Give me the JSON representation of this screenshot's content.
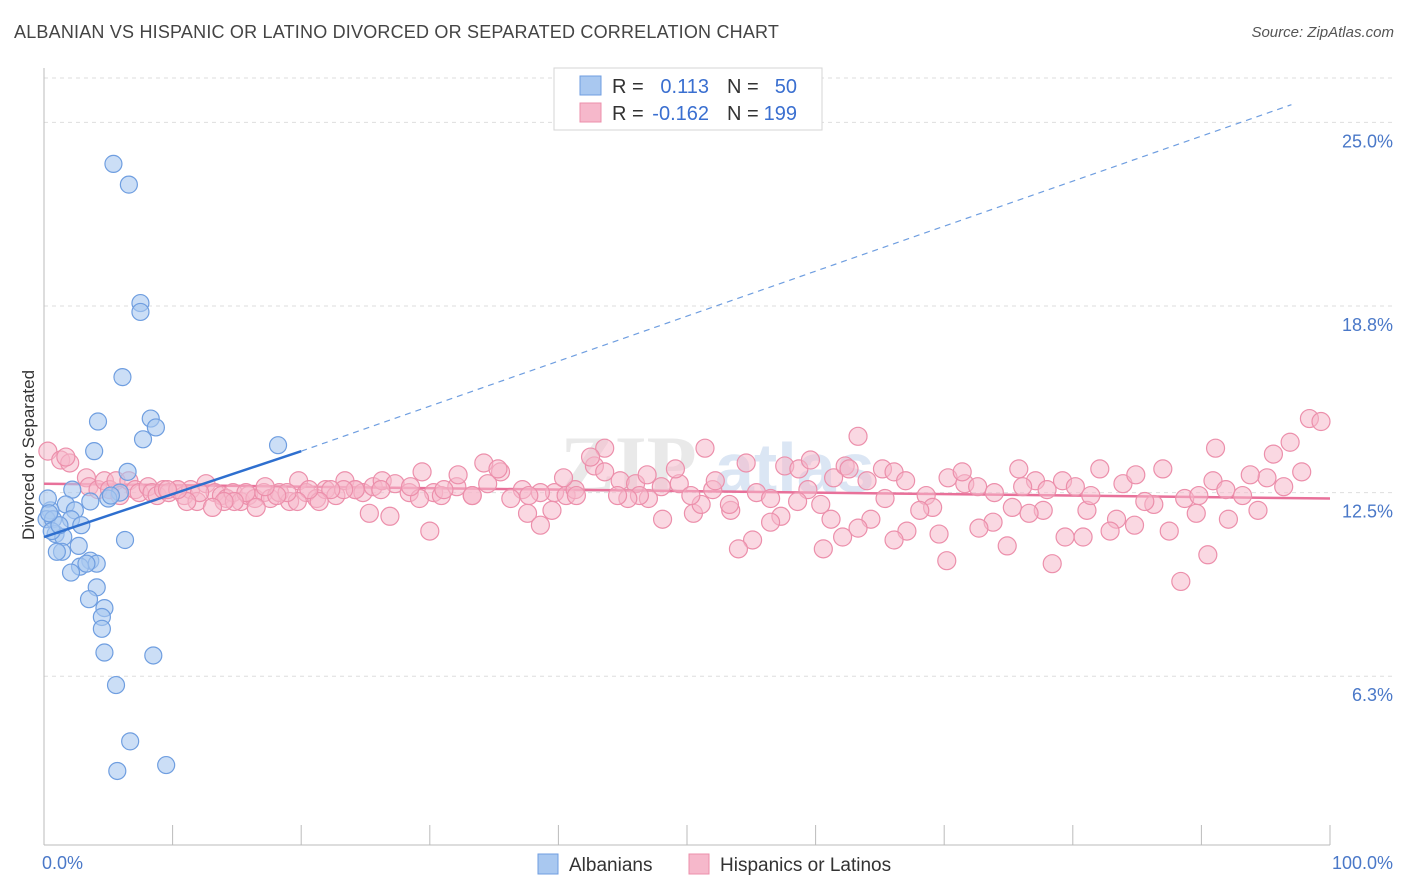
{
  "header": {
    "title": "ALBANIAN VS HISPANIC OR LATINO DIVORCED OR SEPARATED CORRELATION CHART",
    "source": "Source: ZipAtlas.com"
  },
  "watermark": "ZIPatlas",
  "legend": {
    "albanian": {
      "r_label": "R =",
      "r_value": "0.113",
      "n_label": "N =",
      "n_value": "50"
    },
    "hispanic": {
      "r_label": "R =",
      "r_value": "-0.162",
      "n_label": "N =",
      "n_value": "199"
    }
  },
  "bottom_legend": {
    "albanian": "Albanians",
    "hispanic": "Hispanics or Latinos"
  },
  "chart_data": {
    "type": "scatter",
    "title": "ALBANIAN VS HISPANIC OR LATINO DIVORCED OR SEPARATED CORRELATION CHART",
    "xlabel": "",
    "ylabel": "Divorced or Separated",
    "xlim": [
      0,
      100
    ],
    "ylim": [
      0.6,
      26.5
    ],
    "x_tick_labels": [
      "0.0%",
      "100.0%"
    ],
    "y_ticks": [
      6.3,
      12.5,
      18.8,
      25.0
    ],
    "y_tick_labels": [
      "6.3%",
      "12.5%",
      "18.8%",
      "25.0%"
    ],
    "grid": "horizontal dashed",
    "legend_placement": "top-center",
    "colors": {
      "albanian_fill": "#a9c8f0",
      "albanian_stroke": "#6f9ee0",
      "albanian_line": "#2e6fcf",
      "hispanic_fill": "#f6b8cb",
      "hispanic_stroke": "#ec8fab",
      "hispanic_line": "#e8719a"
    },
    "series": [
      {
        "name": "Albanians",
        "trend": {
          "x0": 0,
          "y0": 11.0,
          "x1": 20,
          "y1": 13.9,
          "dashed_to_x": 97,
          "dashed_to_y": 25.6
        },
        "points": [
          [
            5.4,
            23.6
          ],
          [
            6.6,
            22.9
          ],
          [
            7.5,
            18.9
          ],
          [
            7.5,
            18.6
          ],
          [
            6.1,
            16.4
          ],
          [
            8.3,
            15.0
          ],
          [
            8.7,
            14.7
          ],
          [
            4.2,
            14.9
          ],
          [
            7.7,
            14.3
          ],
          [
            3.9,
            13.9
          ],
          [
            18.2,
            14.1
          ],
          [
            6.5,
            13.2
          ],
          [
            2.2,
            12.6
          ],
          [
            1.7,
            12.1
          ],
          [
            3.6,
            12.2
          ],
          [
            5.9,
            12.5
          ],
          [
            5.0,
            12.3
          ],
          [
            0.5,
            11.9
          ],
          [
            2.4,
            11.9
          ],
          [
            0.2,
            11.6
          ],
          [
            0.7,
            11.6
          ],
          [
            2.1,
            11.6
          ],
          [
            2.9,
            11.4
          ],
          [
            0.9,
            11.1
          ],
          [
            1.5,
            11.0
          ],
          [
            0.6,
            11.2
          ],
          [
            6.3,
            10.9
          ],
          [
            2.7,
            10.7
          ],
          [
            1.4,
            10.5
          ],
          [
            1.0,
            10.5
          ],
          [
            3.6,
            10.2
          ],
          [
            2.8,
            10.0
          ],
          [
            4.1,
            10.1
          ],
          [
            3.3,
            10.1
          ],
          [
            2.1,
            9.8
          ],
          [
            4.1,
            9.3
          ],
          [
            3.5,
            8.9
          ],
          [
            4.7,
            8.6
          ],
          [
            4.5,
            8.3
          ],
          [
            4.5,
            7.9
          ],
          [
            4.7,
            7.1
          ],
          [
            8.5,
            7.0
          ],
          [
            5.6,
            6.0
          ],
          [
            6.7,
            4.1
          ],
          [
            5.7,
            3.1
          ],
          [
            9.5,
            3.3
          ],
          [
            0.3,
            12.3
          ],
          [
            1.2,
            11.4
          ],
          [
            0.4,
            11.8
          ],
          [
            5.2,
            12.4
          ]
        ]
      },
      {
        "name": "Hispanics or Latinos",
        "trend": {
          "x0": 0,
          "y0": 12.8,
          "x1": 100,
          "y1": 12.3
        },
        "points": [
          [
            0.3,
            13.9
          ],
          [
            1.3,
            13.6
          ],
          [
            2.0,
            13.5
          ],
          [
            1.7,
            13.7
          ],
          [
            3.3,
            13.0
          ],
          [
            3.5,
            12.7
          ],
          [
            4.2,
            12.6
          ],
          [
            4.7,
            12.9
          ],
          [
            5.1,
            12.6
          ],
          [
            5.6,
            12.9
          ],
          [
            5.9,
            12.4
          ],
          [
            6.6,
            12.9
          ],
          [
            7.1,
            12.6
          ],
          [
            7.4,
            12.5
          ],
          [
            8.1,
            12.7
          ],
          [
            8.4,
            12.5
          ],
          [
            8.8,
            12.4
          ],
          [
            9.3,
            12.6
          ],
          [
            9.7,
            12.5
          ],
          [
            10.4,
            12.6
          ],
          [
            10.9,
            12.4
          ],
          [
            11.4,
            12.6
          ],
          [
            11.9,
            12.2
          ],
          [
            12.6,
            12.8
          ],
          [
            13.3,
            12.5
          ],
          [
            13.8,
            12.4
          ],
          [
            14.2,
            12.3
          ],
          [
            14.7,
            12.5
          ],
          [
            15.3,
            12.2
          ],
          [
            15.9,
            12.4
          ],
          [
            16.4,
            12.3
          ],
          [
            17.1,
            12.5
          ],
          [
            17.6,
            12.3
          ],
          [
            18.3,
            12.5
          ],
          [
            19.1,
            12.2
          ],
          [
            19.8,
            12.9
          ],
          [
            20.4,
            12.5
          ],
          [
            21.2,
            12.3
          ],
          [
            21.9,
            12.6
          ],
          [
            22.7,
            12.4
          ],
          [
            23.4,
            12.9
          ],
          [
            24.2,
            12.6
          ],
          [
            24.8,
            12.5
          ],
          [
            25.6,
            12.7
          ],
          [
            26.3,
            12.9
          ],
          [
            27.3,
            12.8
          ],
          [
            28.4,
            12.5
          ],
          [
            29.4,
            13.2
          ],
          [
            30.3,
            12.5
          ],
          [
            30.9,
            12.4
          ],
          [
            32.1,
            12.7
          ],
          [
            33.3,
            12.4
          ],
          [
            34.2,
            13.5
          ],
          [
            35.5,
            13.2
          ],
          [
            37.2,
            12.6
          ],
          [
            37.6,
            11.8
          ],
          [
            38.6,
            11.4
          ],
          [
            39.7,
            12.5
          ],
          [
            40.6,
            12.4
          ],
          [
            41.3,
            12.6
          ],
          [
            42.8,
            13.4
          ],
          [
            43.6,
            13.2
          ],
          [
            44.8,
            12.9
          ],
          [
            46.0,
            12.8
          ],
          [
            46.9,
            13.1
          ],
          [
            48.0,
            12.7
          ],
          [
            49.4,
            12.8
          ],
          [
            50.5,
            11.8
          ],
          [
            51.1,
            12.1
          ],
          [
            52.0,
            12.6
          ],
          [
            53.4,
            11.9
          ],
          [
            54.6,
            13.5
          ],
          [
            55.4,
            12.5
          ],
          [
            56.5,
            12.3
          ],
          [
            57.6,
            13.4
          ],
          [
            58.7,
            13.3
          ],
          [
            59.6,
            13.6
          ],
          [
            60.4,
            12.1
          ],
          [
            61.4,
            13.0
          ],
          [
            62.3,
            13.4
          ],
          [
            63.3,
            14.4
          ],
          [
            64.0,
            12.9
          ],
          [
            65.2,
            13.3
          ],
          [
            66.1,
            13.2
          ],
          [
            67.0,
            12.9
          ],
          [
            68.6,
            12.4
          ],
          [
            69.1,
            12.0
          ],
          [
            70.3,
            13.0
          ],
          [
            71.6,
            12.8
          ],
          [
            72.6,
            12.7
          ],
          [
            73.9,
            12.5
          ],
          [
            75.3,
            12.0
          ],
          [
            75.8,
            13.3
          ],
          [
            77.1,
            12.9
          ],
          [
            78.0,
            12.6
          ],
          [
            79.2,
            12.9
          ],
          [
            80.2,
            12.7
          ],
          [
            81.1,
            11.9
          ],
          [
            82.1,
            13.3
          ],
          [
            83.9,
            12.8
          ],
          [
            84.9,
            13.1
          ],
          [
            86.3,
            12.1
          ],
          [
            87.5,
            11.2
          ],
          [
            88.7,
            12.3
          ],
          [
            89.6,
            11.8
          ],
          [
            90.9,
            12.9
          ],
          [
            91.9,
            12.6
          ],
          [
            93.2,
            12.4
          ],
          [
            94.4,
            11.9
          ],
          [
            95.1,
            13.0
          ],
          [
            96.4,
            12.7
          ],
          [
            97.8,
            13.2
          ],
          [
            98.4,
            15.0
          ],
          [
            99.3,
            14.9
          ],
          [
            96.9,
            14.2
          ],
          [
            95.6,
            13.8
          ],
          [
            93.8,
            13.1
          ],
          [
            92.1,
            11.6
          ],
          [
            91.1,
            14.0
          ],
          [
            90.5,
            10.4
          ],
          [
            89.8,
            12.4
          ],
          [
            88.4,
            9.5
          ],
          [
            87.0,
            13.3
          ],
          [
            85.6,
            12.2
          ],
          [
            84.8,
            11.4
          ],
          [
            83.4,
            11.6
          ],
          [
            82.9,
            11.2
          ],
          [
            81.4,
            12.4
          ],
          [
            80.8,
            11.0
          ],
          [
            79.4,
            11.0
          ],
          [
            78.4,
            10.1
          ],
          [
            77.7,
            11.9
          ],
          [
            76.6,
            11.8
          ],
          [
            76.1,
            12.7
          ],
          [
            74.9,
            10.7
          ],
          [
            73.8,
            11.5
          ],
          [
            72.7,
            11.3
          ],
          [
            71.4,
            13.2
          ],
          [
            70.2,
            10.2
          ],
          [
            69.6,
            11.1
          ],
          [
            68.1,
            11.9
          ],
          [
            67.1,
            11.2
          ],
          [
            66.1,
            10.9
          ],
          [
            65.4,
            12.3
          ],
          [
            64.3,
            11.6
          ],
          [
            63.3,
            11.3
          ],
          [
            62.6,
            13.3
          ],
          [
            62.1,
            11.0
          ],
          [
            61.2,
            11.6
          ],
          [
            60.6,
            10.6
          ],
          [
            59.4,
            12.6
          ],
          [
            58.6,
            12.2
          ],
          [
            57.3,
            11.7
          ],
          [
            56.5,
            11.5
          ],
          [
            55.1,
            10.9
          ],
          [
            54.0,
            10.6
          ],
          [
            53.3,
            12.1
          ],
          [
            52.2,
            12.9
          ],
          [
            51.4,
            14.0
          ],
          [
            50.3,
            12.4
          ],
          [
            49.1,
            13.3
          ],
          [
            48.1,
            11.6
          ],
          [
            47.0,
            12.3
          ],
          [
            46.3,
            12.4
          ],
          [
            45.4,
            12.3
          ],
          [
            44.6,
            12.4
          ],
          [
            43.6,
            14.0
          ],
          [
            42.5,
            13.7
          ],
          [
            41.4,
            12.4
          ],
          [
            40.4,
            13.0
          ],
          [
            39.5,
            11.9
          ],
          [
            38.6,
            12.5
          ],
          [
            37.7,
            12.4
          ],
          [
            36.3,
            12.3
          ],
          [
            35.3,
            13.3
          ],
          [
            34.5,
            12.8
          ],
          [
            33.3,
            12.4
          ],
          [
            32.2,
            13.1
          ],
          [
            31.1,
            12.6
          ],
          [
            30.0,
            11.2
          ],
          [
            29.2,
            12.3
          ],
          [
            28.5,
            12.7
          ],
          [
            26.9,
            11.7
          ],
          [
            26.2,
            12.6
          ],
          [
            25.3,
            11.8
          ],
          [
            24.2,
            12.6
          ],
          [
            23.3,
            12.6
          ],
          [
            22.3,
            12.6
          ],
          [
            21.4,
            12.2
          ],
          [
            20.6,
            12.6
          ],
          [
            19.7,
            12.2
          ],
          [
            18.9,
            12.5
          ],
          [
            18.1,
            12.4
          ],
          [
            17.2,
            12.7
          ],
          [
            16.5,
            12.0
          ],
          [
            15.7,
            12.5
          ],
          [
            14.8,
            12.2
          ],
          [
            14.0,
            12.2
          ],
          [
            13.1,
            12.0
          ],
          [
            12.1,
            12.5
          ],
          [
            11.1,
            12.2
          ],
          [
            10.4,
            12.6
          ],
          [
            9.6,
            12.6
          ]
        ]
      }
    ]
  }
}
